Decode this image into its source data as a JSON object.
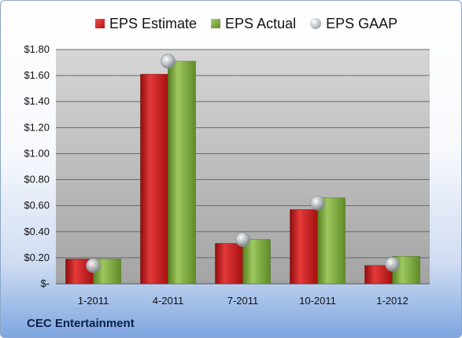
{
  "legend": {
    "estimate": "EPS Estimate",
    "actual": "EPS Actual",
    "gaap": "EPS GAAP"
  },
  "company": "CEC Entertainment",
  "colors": {
    "estimate": "#c41a1a",
    "actual": "#7aa83c",
    "gaap": "#b0b6be",
    "plot_top": "#d4d4d4",
    "plot_bottom": "#a6a6a6"
  },
  "chart_data": {
    "type": "bar",
    "categories": [
      "1-2011",
      "4-2011",
      "7-2011",
      "10-2011",
      "1-2012"
    ],
    "series": [
      {
        "name": "EPS Estimate",
        "values": [
          0.19,
          1.61,
          0.31,
          0.57,
          0.14
        ]
      },
      {
        "name": "EPS Actual",
        "values": [
          0.19,
          1.71,
          0.34,
          0.66,
          0.21
        ]
      },
      {
        "name": "EPS GAAP",
        "values": [
          0.14,
          1.71,
          0.34,
          0.62,
          0.15
        ],
        "style": "marker"
      }
    ],
    "yticks": [
      "$-",
      "$0.20",
      "$0.40",
      "$0.60",
      "$0.80",
      "$1.00",
      "$1.20",
      "$1.40",
      "$1.60",
      "$1.80"
    ],
    "ylim": [
      0,
      1.8
    ],
    "grid": true,
    "legend_position": "top"
  }
}
